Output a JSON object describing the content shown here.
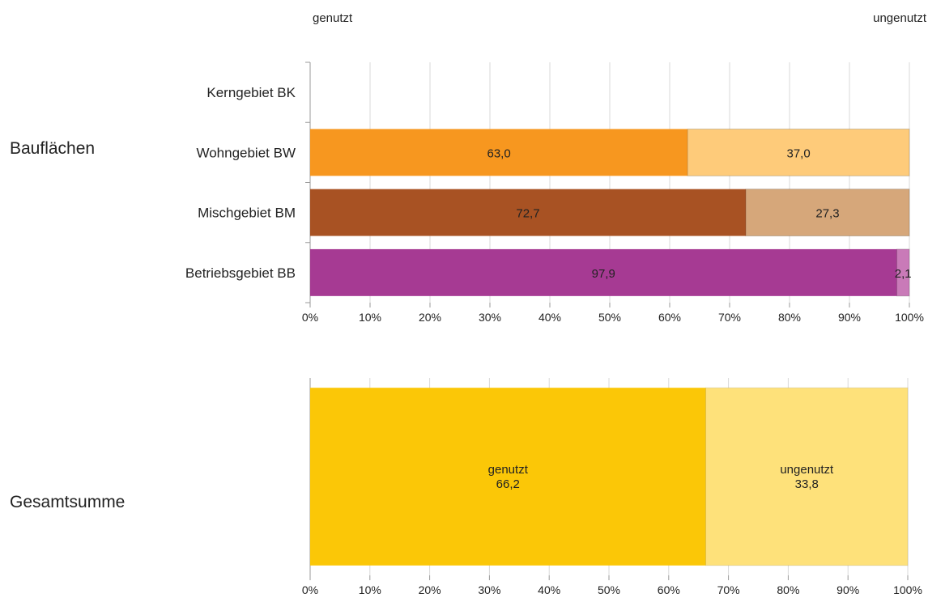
{
  "header": {
    "left_label": "genutzt",
    "right_label": "ungenutzt"
  },
  "groups": {
    "top_label": "Bauflächen",
    "bottom_label": "Gesamtsumme"
  },
  "colors": {
    "grid": "#d9d9d9",
    "axis": "#9a9a9a"
  },
  "chart_data": [
    {
      "type": "bar",
      "orientation": "horizontal",
      "stacked": true,
      "group_label": "Bauflächen",
      "categories": [
        "Kerngebiet  BK",
        "Wohngebiet  BW",
        "Mischgebiet  BM",
        "Betriebsgebiet  BB"
      ],
      "series": [
        {
          "name": "genutzt",
          "values": [
            null,
            63.0,
            72.7,
            97.9
          ],
          "labels": [
            "",
            "63,0",
            "72,7",
            "97,9"
          ],
          "colors": [
            "#f7971f",
            "#f7971f",
            "#a85223",
            "#a63a93"
          ]
        },
        {
          "name": "ungenutzt",
          "values": [
            null,
            37.0,
            27.3,
            2.1
          ],
          "labels": [
            "",
            "37,0",
            "27,3",
            "2,1"
          ],
          "colors": [
            "#fecb7a",
            "#fecb7a",
            "#d6a77a",
            "#c97ab8"
          ]
        }
      ],
      "xlim": [
        0,
        100
      ],
      "xticks": [
        "0%",
        "10%",
        "20%",
        "30%",
        "40%",
        "50%",
        "60%",
        "70%",
        "80%",
        "90%",
        "100%"
      ],
      "grid": true
    },
    {
      "type": "bar",
      "orientation": "horizontal",
      "stacked": true,
      "group_label": "Gesamtsumme",
      "categories": [
        "Gesamtsumme"
      ],
      "series": [
        {
          "name": "genutzt",
          "values": [
            66.2
          ],
          "labels": [
            "66,2"
          ],
          "colors": [
            "#fbc707"
          ]
        },
        {
          "name": "ungenutzt",
          "values": [
            33.8
          ],
          "labels": [
            "33,8"
          ],
          "colors": [
            "#fee17a"
          ]
        }
      ],
      "xlim": [
        0,
        100
      ],
      "xticks": [
        "0%",
        "10%",
        "20%",
        "30%",
        "40%",
        "50%",
        "60%",
        "70%",
        "80%",
        "90%",
        "100%"
      ],
      "grid": true
    }
  ]
}
